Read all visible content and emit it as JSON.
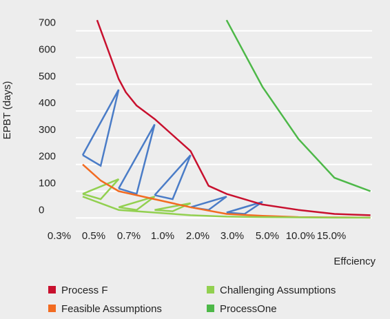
{
  "chart_data": {
    "type": "line",
    "categories": [
      "0.3%",
      "0.5%",
      "0.7%",
      "1.0%",
      "2.0%",
      "3.0%",
      "5.0%",
      "10.0%",
      "15.0%"
    ],
    "xlabel": "Effciency",
    "ylabel": "EPBT (days)",
    "ylim": [
      0,
      700
    ],
    "yticks": [
      0,
      100,
      200,
      300,
      400,
      500,
      600,
      700
    ],
    "grid": true,
    "legend_placement": "bottom",
    "series": [
      {
        "name": "Process F",
        "color": "#c8102e",
        "x": [
          0.4,
          1.0,
          1.2,
          1.5,
          2.0,
          2.5,
          3.0,
          3.5,
          4.0,
          5.0,
          6.0,
          7.0,
          8.0
        ],
        "y": [
          740,
          520,
          470,
          420,
          370,
          310,
          250,
          120,
          90,
          50,
          30,
          15,
          10
        ]
      },
      {
        "name": "Feasible Assumptions",
        "color": "#f26b21",
        "x": [
          0.0,
          0.5,
          1.0,
          2.0,
          3.0,
          4.0,
          5.0,
          6.0,
          7.0,
          8.0
        ],
        "y": [
          200,
          140,
          100,
          70,
          40,
          15,
          8,
          3,
          2,
          1
        ]
      },
      {
        "name": "Challenging Assumptions",
        "color": "#92d050",
        "x": [
          0.0,
          1.0,
          2.0,
          3.0,
          4.0,
          5.0,
          6.0,
          7.0,
          8.0
        ],
        "y": [
          80,
          30,
          20,
          10,
          5,
          3,
          2,
          1,
          1
        ]
      },
      {
        "name": "ProcessOne",
        "color": "#4db848",
        "x": [
          4.0,
          5.0,
          6.0,
          7.0,
          8.0
        ],
        "y": [
          740,
          490,
          295,
          150,
          100
        ]
      }
    ],
    "annotation_shapes": [
      {
        "color": "#4a7cc7",
        "points": [
          [
            0.0,
            235
          ],
          [
            0.5,
            195
          ],
          [
            1.0,
            480
          ],
          [
            0.0,
            235
          ]
        ]
      },
      {
        "color": "#4a7cc7",
        "points": [
          [
            1.0,
            110
          ],
          [
            1.5,
            90
          ],
          [
            2.0,
            350
          ],
          [
            1.0,
            110
          ]
        ]
      },
      {
        "color": "#4a7cc7",
        "points": [
          [
            2.0,
            85
          ],
          [
            2.5,
            70
          ],
          [
            3.0,
            235
          ],
          [
            2.0,
            85
          ]
        ]
      },
      {
        "color": "#4a7cc7",
        "points": [
          [
            3.0,
            40
          ],
          [
            3.5,
            30
          ],
          [
            4.0,
            80
          ],
          [
            3.0,
            40
          ]
        ]
      },
      {
        "color": "#4a7cc7",
        "points": [
          [
            4.0,
            20
          ],
          [
            4.5,
            15
          ],
          [
            5.0,
            60
          ],
          [
            4.0,
            20
          ]
        ]
      },
      {
        "color": "#92d050",
        "points": [
          [
            0.0,
            90
          ],
          [
            0.5,
            70
          ],
          [
            1.0,
            145
          ],
          [
            0.0,
            90
          ]
        ]
      },
      {
        "color": "#92d050",
        "points": [
          [
            1.0,
            40
          ],
          [
            1.5,
            30
          ],
          [
            2.0,
            80
          ],
          [
            1.0,
            40
          ]
        ]
      },
      {
        "color": "#92d050",
        "points": [
          [
            2.0,
            30
          ],
          [
            2.5,
            25
          ],
          [
            3.0,
            55
          ],
          [
            2.0,
            30
          ]
        ]
      }
    ]
  }
}
